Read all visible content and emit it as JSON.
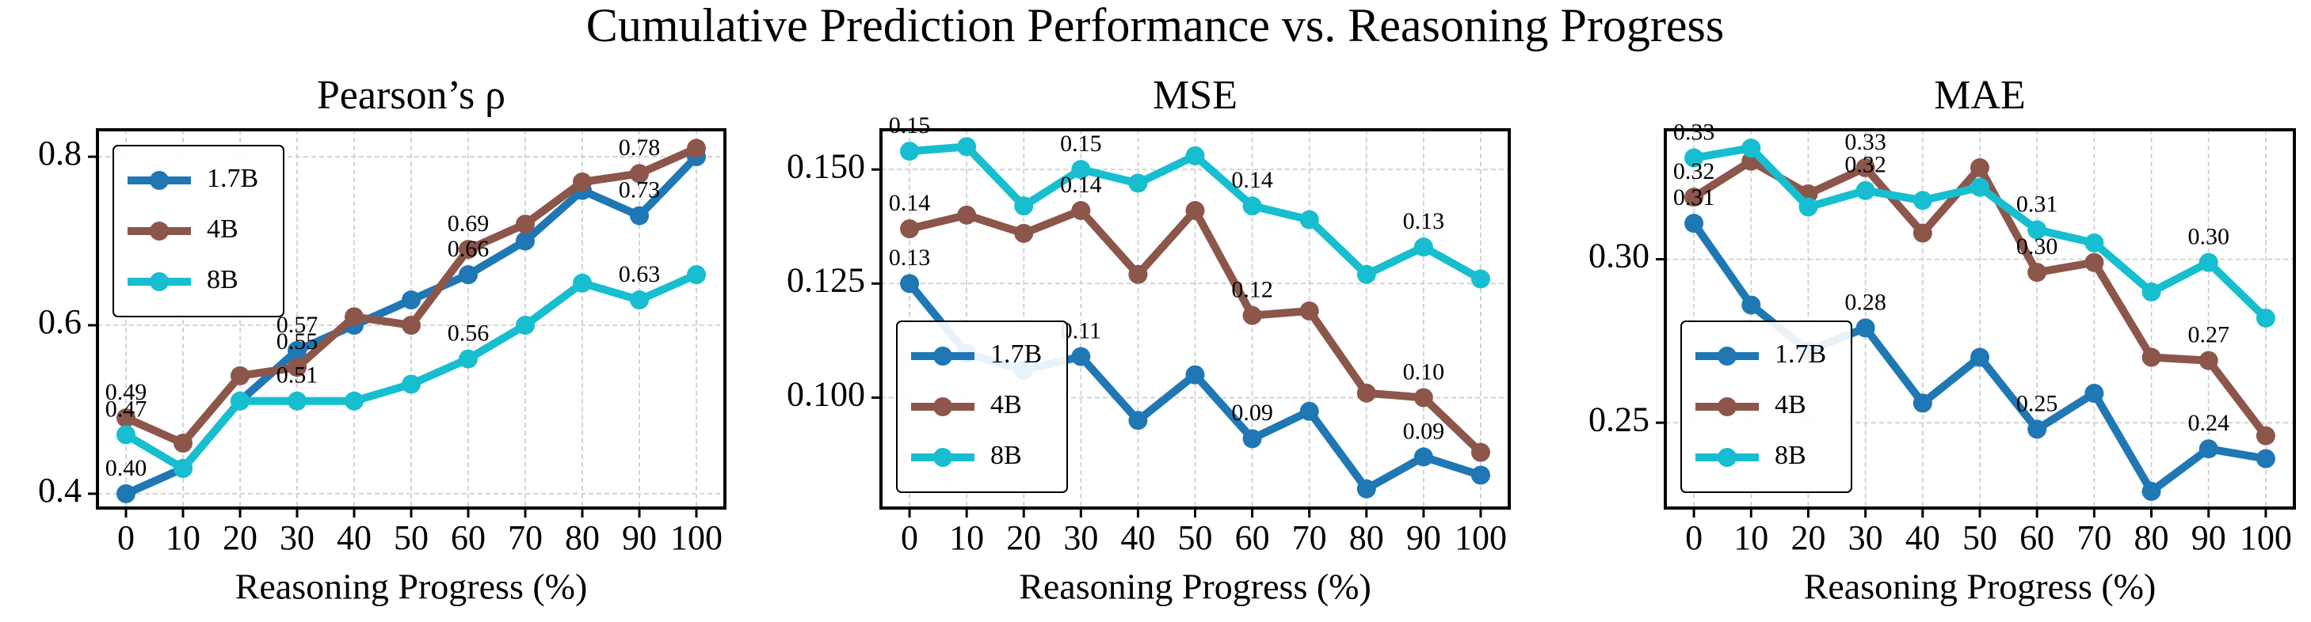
{
  "title": "Cumulative Prediction Performance vs. Reasoning Progress",
  "chart_data": [
    {
      "type": "line",
      "title": "Pearson’s ρ",
      "xlabel": "Reasoning Progress (%)",
      "x": [
        0,
        10,
        20,
        30,
        40,
        50,
        60,
        70,
        80,
        90,
        100
      ],
      "xlim": [
        -5,
        105
      ],
      "xticks": [
        0,
        10,
        20,
        30,
        40,
        50,
        60,
        70,
        80,
        90,
        100
      ],
      "ylim": [
        0.383,
        0.832
      ],
      "yticks": [
        0.4,
        0.6,
        0.8
      ],
      "grid": true,
      "legend": "upper left",
      "series": [
        {
          "name": "1.7B",
          "color": "#1f77b4",
          "values": [
            0.4,
            0.43,
            0.51,
            0.57,
            0.6,
            0.63,
            0.66,
            0.7,
            0.76,
            0.73,
            0.8
          ],
          "value_labels": [
            "0.40",
            null,
            null,
            "0.57",
            null,
            null,
            "0.66",
            null,
            null,
            "0.73",
            null
          ]
        },
        {
          "name": "4B",
          "color": "#8c564b",
          "values": [
            0.49,
            0.46,
            0.54,
            0.55,
            0.61,
            0.6,
            0.69,
            0.72,
            0.77,
            0.78,
            0.81
          ],
          "value_labels": [
            "0.49",
            null,
            null,
            "0.55",
            null,
            null,
            "0.69",
            null,
            null,
            "0.78",
            null
          ]
        },
        {
          "name": "8B",
          "color": "#17becf",
          "values": [
            0.47,
            0.43,
            0.51,
            0.51,
            0.51,
            0.53,
            0.56,
            0.6,
            0.65,
            0.63,
            0.66
          ],
          "value_labels": [
            "0.47",
            null,
            null,
            "0.51",
            null,
            null,
            "0.56",
            null,
            null,
            "0.63",
            null
          ]
        }
      ]
    },
    {
      "type": "line",
      "title": "MSE",
      "xlabel": "Reasoning Progress (%)",
      "x": [
        0,
        10,
        20,
        30,
        40,
        50,
        60,
        70,
        80,
        90,
        100
      ],
      "xlim": [
        -5,
        105
      ],
      "xticks": [
        0,
        10,
        20,
        30,
        40,
        50,
        60,
        70,
        80,
        90,
        100
      ],
      "ylim": [
        0.0758,
        0.1587
      ],
      "yticks": [
        {
          "value": 0.1,
          "label": "0.100"
        },
        0.125,
        {
          "value": 0.15,
          "label": "0.150"
        }
      ],
      "grid": true,
      "legend": "lower left",
      "series": [
        {
          "name": "1.7B",
          "color": "#1f77b4",
          "values": [
            0.125,
            0.1097,
            0.106,
            0.109,
            0.095,
            0.105,
            0.091,
            0.097,
            0.08,
            0.087,
            0.083
          ],
          "value_labels": [
            "0.13",
            null,
            null,
            "0.11",
            null,
            null,
            "0.09",
            null,
            null,
            "0.09",
            null
          ]
        },
        {
          "name": "4B",
          "color": "#8c564b",
          "values": [
            0.137,
            0.14,
            0.136,
            0.141,
            0.127,
            0.141,
            0.118,
            0.119,
            0.101,
            0.1,
            0.088
          ],
          "value_labels": [
            "0.14",
            null,
            null,
            "0.14",
            null,
            null,
            "0.12",
            null,
            null,
            "0.10",
            null
          ]
        },
        {
          "name": "8B",
          "color": "#17becf",
          "values": [
            0.154,
            0.155,
            0.142,
            0.15,
            0.147,
            0.153,
            0.142,
            0.139,
            0.127,
            0.133,
            0.126
          ],
          "value_labels": [
            "0.15",
            null,
            null,
            "0.15",
            null,
            null,
            "0.14",
            null,
            null,
            "0.13",
            null
          ]
        }
      ]
    },
    {
      "type": "line",
      "title": "MAE",
      "xlabel": "Reasoning Progress (%)",
      "x": [
        0,
        10,
        20,
        30,
        40,
        50,
        60,
        70,
        80,
        90,
        100
      ],
      "xlim": [
        -5,
        105
      ],
      "xticks": [
        0,
        10,
        20,
        30,
        40,
        50,
        60,
        70,
        80,
        90,
        100
      ],
      "ylim": [
        0.2239,
        0.3396
      ],
      "yticks": [
        0.25,
        {
          "value": 0.3,
          "label": "0.30"
        }
      ],
      "grid": true,
      "legend": "lower left",
      "series": [
        {
          "name": "1.7B",
          "color": "#1f77b4",
          "values": [
            0.311,
            0.286,
            0.272,
            0.279,
            0.256,
            0.27,
            0.248,
            0.259,
            0.229,
            0.242,
            0.239
          ],
          "value_labels": [
            "0.31",
            null,
            null,
            "0.28",
            null,
            null,
            "0.25",
            null,
            null,
            "0.24",
            null
          ]
        },
        {
          "name": "4B",
          "color": "#8c564b",
          "values": [
            0.319,
            0.33,
            0.32,
            0.328,
            0.308,
            0.328,
            0.296,
            0.299,
            0.27,
            0.269,
            0.246
          ],
          "value_labels": [
            "0.32",
            null,
            null,
            "0.33",
            null,
            null,
            "0.30",
            null,
            null,
            "0.27",
            null
          ]
        },
        {
          "name": "8B",
          "color": "#17becf",
          "values": [
            0.331,
            0.334,
            0.316,
            0.321,
            0.318,
            0.322,
            0.309,
            0.305,
            0.29,
            0.299,
            0.282
          ],
          "value_labels": [
            "0.33",
            null,
            null,
            "0.32",
            null,
            null,
            "0.31",
            null,
            null,
            "0.30",
            null
          ]
        }
      ]
    }
  ]
}
